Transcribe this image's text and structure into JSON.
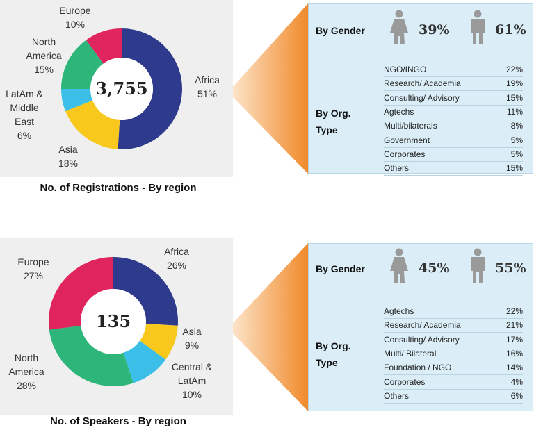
{
  "chart_data": [
    {
      "type": "pie",
      "donut": true,
      "title": "No. of Registrations - By region",
      "center_label": "3,755",
      "categories": [
        "Africa",
        "Asia",
        "LatAm & Middle East",
        "North America",
        "Europe"
      ],
      "values": [
        51,
        18,
        6,
        15,
        10
      ],
      "value_labels": [
        "51%",
        "18%",
        "6%",
        "15%",
        "10%"
      ],
      "colors": [
        "#2e3a8c",
        "#f8c81c",
        "#3bbfe8",
        "#2db57a",
        "#e0245e"
      ]
    },
    {
      "type": "pie",
      "donut": true,
      "title": "No. of Speakers - By region",
      "center_label": "135",
      "categories": [
        "Africa",
        "Asia",
        "Central & LatAm",
        "North America",
        "Europe"
      ],
      "values": [
        26,
        9,
        10,
        28,
        27
      ],
      "value_labels": [
        "26%",
        "9%",
        "10%",
        "28%",
        "27%"
      ],
      "colors": [
        "#2e3a8c",
        "#f8c81c",
        "#3bbfe8",
        "#2db57a",
        "#e0245e"
      ]
    }
  ],
  "panels": [
    {
      "gender_title": "By Gender",
      "female": "39%",
      "male": "61%",
      "org_title": "By Org. Type",
      "org_rows": [
        [
          "NGO/INGO",
          "22%"
        ],
        [
          "Research/ Academia",
          "19%"
        ],
        [
          "Consulting/ Advisory",
          "15%"
        ],
        [
          "Agtechs",
          "11%"
        ],
        [
          "Multi/bilaterals",
          "8%"
        ],
        [
          "Government",
          "5%"
        ],
        [
          "Corporates",
          "5%"
        ],
        [
          "Others",
          "15%"
        ]
      ]
    },
    {
      "gender_title": "By Gender",
      "female": "45%",
      "male": "55%",
      "org_title": "By Org. Type",
      "org_rows": [
        [
          "Agtechs",
          "22%"
        ],
        [
          "Research/ Academia",
          "21%"
        ],
        [
          "Consulting/ Advisory",
          "17%"
        ],
        [
          "Multi/ Bilateral",
          "16%"
        ],
        [
          "Foundation / NGO",
          "14%"
        ],
        [
          "Corporates",
          "4%"
        ],
        [
          "Others",
          "6%"
        ]
      ]
    }
  ]
}
